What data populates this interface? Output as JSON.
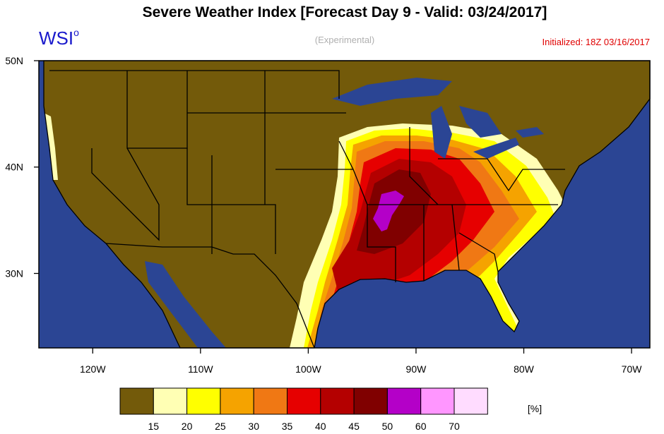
{
  "header": {
    "title": "Severe Weather Index [Forecast Day 9 - Valid: 03/24/2017]",
    "logo": "WSI",
    "logo_superscript": "o",
    "subtitle": "(Experimental)",
    "initialized": "Initialized: 18Z 03/16/2017"
  },
  "map": {
    "xlim": [
      -125,
      -68.3
    ],
    "ylim": [
      23,
      50
    ],
    "xticks": [
      {
        "value": -120,
        "label": "120W"
      },
      {
        "value": -110,
        "label": "110W"
      },
      {
        "value": -100,
        "label": "100W"
      },
      {
        "value": -90,
        "label": "90W"
      },
      {
        "value": -80,
        "label": "80W"
      },
      {
        "value": -70,
        "label": "70W"
      }
    ],
    "yticks": [
      {
        "value": 30,
        "label": "30N"
      },
      {
        "value": 40,
        "label": "40N"
      },
      {
        "value": 50,
        "label": "50N"
      }
    ],
    "ocean_color": "#2b4594"
  },
  "colorbar": {
    "colors": [
      "#735a0a",
      "#ffffb4",
      "#ffff00",
      "#f5a300",
      "#f07814",
      "#e60000",
      "#b40000",
      "#800000",
      "#b400c8",
      "#ff96ff",
      "#ffdcff"
    ],
    "labels": [
      15,
      20,
      25,
      30,
      35,
      40,
      45,
      50,
      60,
      70
    ],
    "unit": "[%]"
  }
}
